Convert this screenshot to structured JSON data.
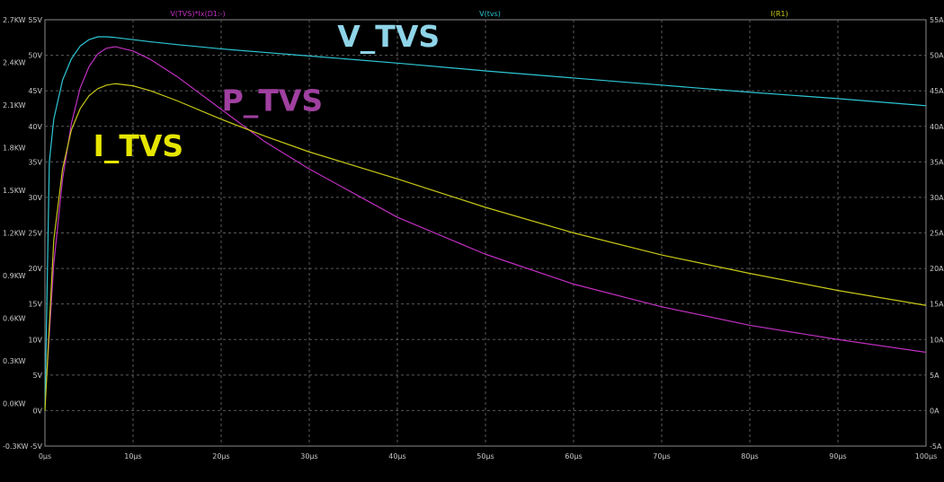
{
  "chart_data": {
    "type": "line",
    "x_unit": "µs",
    "xlim": [
      0,
      100
    ],
    "x_ticks": [
      "0µs",
      "10µs",
      "20µs",
      "30µs",
      "40µs",
      "50µs",
      "60µs",
      "70µs",
      "80µs",
      "90µs",
      "100µs"
    ],
    "axes": {
      "left_power": {
        "ticks": [
          "-0.3KW",
          "0.0KW",
          "0.3KW",
          "0.6KW",
          "0.9KW",
          "1.2KW",
          "1.5KW",
          "1.8KW",
          "2.1KW",
          "2.4KW",
          "2.7KW"
        ],
        "lim_kw": [
          -0.3,
          2.7
        ]
      },
      "left_voltage": {
        "ticks": [
          "-5V",
          "0V",
          "5V",
          "10V",
          "15V",
          "20V",
          "25V",
          "30V",
          "35V",
          "40V",
          "45V",
          "50V",
          "55V"
        ],
        "lim_v": [
          -5,
          55
        ]
      },
      "right_current": {
        "ticks": [
          "-5A",
          "0A",
          "5A",
          "10A",
          "15A",
          "20A",
          "25A",
          "30A",
          "35A",
          "40A",
          "45A",
          "50A",
          "55A"
        ],
        "lim_a": [
          -5,
          55
        ]
      }
    },
    "grid": true,
    "series": [
      {
        "name": "V(TVS)*Ix(D1:-)",
        "axis": "left_power",
        "color": "#c030c0",
        "x": [
          0,
          1,
          2,
          3,
          4,
          5,
          6,
          7,
          8,
          10,
          12,
          15,
          20,
          25,
          30,
          40,
          50,
          60,
          70,
          80,
          90,
          100
        ],
        "y": [
          0,
          0.98,
          1.58,
          1.97,
          2.22,
          2.37,
          2.46,
          2.5,
          2.51,
          2.48,
          2.42,
          2.3,
          2.07,
          1.84,
          1.65,
          1.31,
          1.05,
          0.84,
          0.68,
          0.55,
          0.45,
          0.36
        ]
      },
      {
        "name": "V(tvs)",
        "axis": "left_voltage",
        "color": "#2ec6d4",
        "x": [
          0,
          0.5,
          1,
          2,
          3,
          4,
          5,
          6,
          7,
          8,
          10,
          12,
          15,
          20,
          25,
          30,
          40,
          50,
          60,
          70,
          80,
          90,
          100
        ],
        "y": [
          0,
          35,
          41,
          46.5,
          49.5,
          51.3,
          52.2,
          52.6,
          52.6,
          52.5,
          52.2,
          51.9,
          51.5,
          50.9,
          50.4,
          49.9,
          48.9,
          47.8,
          46.8,
          45.8,
          44.8,
          43.9,
          42.9
        ]
      },
      {
        "name": "I(R1)",
        "axis": "right_current",
        "color": "#c8c818",
        "x": [
          0,
          1,
          2,
          3,
          4,
          5,
          6,
          7,
          8,
          10,
          12,
          15,
          20,
          25,
          30,
          40,
          50,
          60,
          70,
          80,
          90,
          100
        ],
        "y": [
          0,
          24,
          34,
          39.5,
          42.5,
          44.3,
          45.3,
          45.8,
          46.0,
          45.7,
          45.0,
          43.6,
          41.0,
          38.6,
          36.4,
          32.6,
          28.6,
          25.0,
          21.9,
          19.3,
          16.9,
          14.8
        ]
      }
    ],
    "annotations": [
      {
        "text": "V_TVS",
        "color": "#8fd4e8",
        "x_us": 39,
        "y_v": 51.2
      },
      {
        "text": "P_TVS",
        "color": "#a040a0",
        "x_us": 25.8,
        "y_v": 42.2
      },
      {
        "text": "I_TVS",
        "color": "#e6e600",
        "x_us": 10.6,
        "y_v": 35.8
      }
    ]
  }
}
